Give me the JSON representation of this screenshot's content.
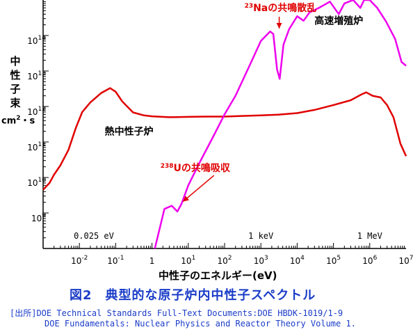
{
  "chart_data": {
    "type": "line",
    "x_scale": "log",
    "y_scale": "log",
    "xlim": [
      0.001,
      10000000
    ],
    "ylim": [
      100000000,
      1000000000000000
    ],
    "x_ticks": [
      {
        "v": 0.01,
        "b": "10",
        "e": "-2"
      },
      {
        "v": 0.1,
        "b": "10",
        "e": "-1"
      },
      {
        "v": 1,
        "b": "1",
        "e": ""
      },
      {
        "v": 10,
        "b": "10",
        "e": "1"
      },
      {
        "v": 100,
        "b": "10",
        "e": "2"
      },
      {
        "v": 1000,
        "b": "10",
        "e": "3"
      },
      {
        "v": 10000,
        "b": "10",
        "e": "4"
      },
      {
        "v": 100000,
        "b": "10",
        "e": "5"
      },
      {
        "v": 1000000,
        "b": "10",
        "e": "6"
      },
      {
        "v": 10000000,
        "b": "10",
        "e": "7"
      }
    ],
    "y_ticks": [
      {
        "v": 1000000000,
        "b": "10",
        "e": "9"
      },
      {
        "v": 10000000000,
        "b": "10",
        "e": "10"
      },
      {
        "v": 100000000000,
        "b": "10",
        "e": "11"
      },
      {
        "v": 1000000000000,
        "b": "10",
        "e": "12"
      },
      {
        "v": 10000000000000,
        "b": "10",
        "e": "13"
      },
      {
        "v": 100000000000000,
        "b": "10",
        "e": "14"
      }
    ],
    "xlabel": "中性子のエネルギー(eV)",
    "ylabel_chars": [
      "中",
      "性",
      "子",
      "束"
    ],
    "ylabel_unit_base": "cm",
    "ylabel_unit_exp": "2",
    "ylabel_unit_rest": "・s",
    "energy_marks": [
      {
        "x": 0.025,
        "label": "0.025 eV"
      },
      {
        "x": 1000,
        "label": "1 keV"
      },
      {
        "x": 1000000,
        "label": "1 MeV"
      }
    ],
    "series": [
      {
        "name": "熱中性子炉",
        "color": "#e00000",
        "points": [
          [
            0.001,
            4500000000.0
          ],
          [
            0.0015,
            7000000000.0
          ],
          [
            0.002,
            12000000000.0
          ],
          [
            0.003,
            22000000000.0
          ],
          [
            0.005,
            60000000000.0
          ],
          [
            0.008,
            250000000000.0
          ],
          [
            0.012,
            700000000000.0
          ],
          [
            0.02,
            1300000000000.0
          ],
          [
            0.04,
            2400000000000.0
          ],
          [
            0.07,
            3300000000000.0
          ],
          [
            0.1,
            2600000000000.0
          ],
          [
            0.15,
            1400000000000.0
          ],
          [
            0.3,
            680000000000.0
          ],
          [
            0.6,
            560000000000.0
          ],
          [
            1,
            530000000000.0
          ],
          [
            3,
            500000000000.0
          ],
          [
            10,
            510000000000.0
          ],
          [
            30,
            520000000000.0
          ],
          [
            100,
            520000000000.0
          ],
          [
            300,
            540000000000.0
          ],
          [
            1000,
            560000000000.0
          ],
          [
            3000,
            590000000000.0
          ],
          [
            10000,
            650000000000.0
          ],
          [
            30000,
            800000000000.0
          ],
          [
            100000,
            1100000000000.0
          ],
          [
            300000,
            1500000000000.0
          ],
          [
            600000,
            2200000000000.0
          ],
          [
            800000,
            2500000000000.0
          ],
          [
            1200000,
            2000000000000.0
          ],
          [
            2000000,
            1800000000000.0
          ],
          [
            3000000,
            1100000000000.0
          ],
          [
            4500000,
            500000000000.0
          ],
          [
            7000000,
            90000000000.0
          ],
          [
            10000000,
            40000000000.0
          ]
        ]
      },
      {
        "name": "高速増殖炉",
        "color": "#ee00ee",
        "points": [
          [
            1.2,
            100000000.0
          ],
          [
            2.2,
            1300000000.0
          ],
          [
            3.5,
            1600000000.0
          ],
          [
            5,
            1100000000.0
          ],
          [
            6.5,
            1800000000.0
          ],
          [
            10,
            6000000000.0
          ],
          [
            20,
            25000000000.0
          ],
          [
            50,
            150000000000.0
          ],
          [
            100,
            600000000000.0
          ],
          [
            200,
            2000000000000.0
          ],
          [
            500,
            15000000000000.0
          ],
          [
            1000,
            70000000000000.0
          ],
          [
            1800,
            130000000000000.0
          ],
          [
            2200,
            110000000000000.0
          ],
          [
            2800,
            11000000000000.0
          ],
          [
            3300,
            6000000000000.0
          ],
          [
            4200,
            55000000000000.0
          ],
          [
            6000,
            150000000000000.0
          ],
          [
            10000,
            350000000000000.0
          ],
          [
            15000,
            260000000000000.0
          ],
          [
            22000,
            450000000000000.0
          ],
          [
            40000,
            600000000000000.0
          ],
          [
            80000,
            900000000000000.0
          ],
          [
            140000,
            400000000000000.0
          ],
          [
            200000,
            800000000000000.0
          ],
          [
            350000,
            1200000000000000.0
          ],
          [
            550000,
            600000000000000.0
          ],
          [
            700000,
            1400000000000000.0
          ],
          [
            1000000,
            1100000000000000.0
          ],
          [
            1600000,
            600000000000000.0
          ],
          [
            2800000,
            250000000000000.0
          ],
          [
            5000000,
            80000000000000.0
          ],
          [
            7500000,
            18000000000000.0
          ],
          [
            10000000,
            14000000000000.0
          ]
        ]
      }
    ],
    "annotations": [
      {
        "id": "na",
        "sup": "23",
        "text": "Naの共鳴散乱",
        "color": "#e00000",
        "x": 3200,
        "y": 300000000000000.0,
        "arrow_to": [
          3200,
          120000000000000.0
        ]
      },
      {
        "id": "u",
        "sup": "238",
        "text": "Uの共鳴吸収",
        "color": "#e00000",
        "x": 1.2,
        "y": 15000000000.0,
        "arrow_to": [
          6,
          1600000000.0
        ]
      }
    ],
    "series_labels": [
      {
        "text": "熱中性子炉",
        "x": 0.05,
        "y": 160000000000.0
      },
      {
        "text": "高速増殖炉",
        "x": 30000,
        "y": 210000000000000.0
      }
    ]
  },
  "figure_title": "図2　典型的な原子炉内中性子スペクトル",
  "source_line1": "[出所]DOE Technical Standards Full-Text Documents:DOE HBDK-1019/1-9",
  "source_line2": "DOE Fundamentals: Nuclear Physics and Reactor Theory Volume 1."
}
